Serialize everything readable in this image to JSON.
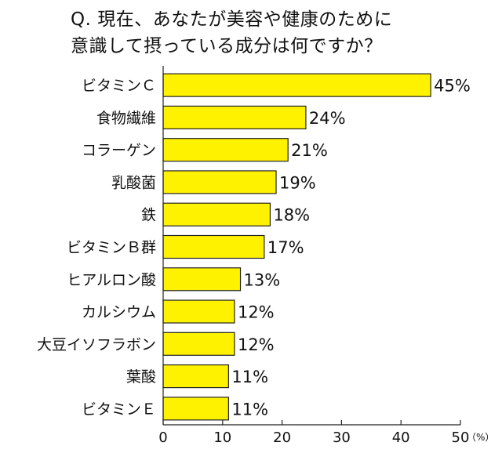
{
  "chart_data": {
    "type": "bar",
    "orientation": "horizontal",
    "title": "Q. 現在、あなたが美容や健康のために意識して摂っている成分は何ですか？",
    "title_lines": [
      "Q. 現在、あなたが美容や健康のために",
      "意識して摂っている成分は何ですか？"
    ],
    "categories": [
      "ビタミンＣ",
      "食物繊維",
      "コラーゲン",
      "乳酸菌",
      "鉄",
      "ビタミンＢ群",
      "ヒアルロン酸",
      "カルシウム",
      "大豆イソフラボン",
      "葉酸",
      "ビタミンＥ"
    ],
    "values": [
      45,
      24,
      21,
      19,
      18,
      17,
      13,
      12,
      12,
      11,
      11
    ],
    "value_labels": [
      "45%",
      "24%",
      "21%",
      "19%",
      "18%",
      "17%",
      "13%",
      "12%",
      "12%",
      "11%",
      "11%"
    ],
    "xlim": [
      0,
      50
    ],
    "xticks": [
      0,
      10,
      20,
      30,
      40,
      50
    ],
    "xtick_labels": [
      "0",
      "10",
      "20",
      "30",
      "40",
      "50"
    ],
    "xunit": "（%）",
    "xlabel": "",
    "ylabel": "",
    "grid": false,
    "legend": "none",
    "colors": {
      "bar_fill": "#FFF200",
      "bar_stroke": "#222222",
      "axis": "#222222"
    }
  }
}
